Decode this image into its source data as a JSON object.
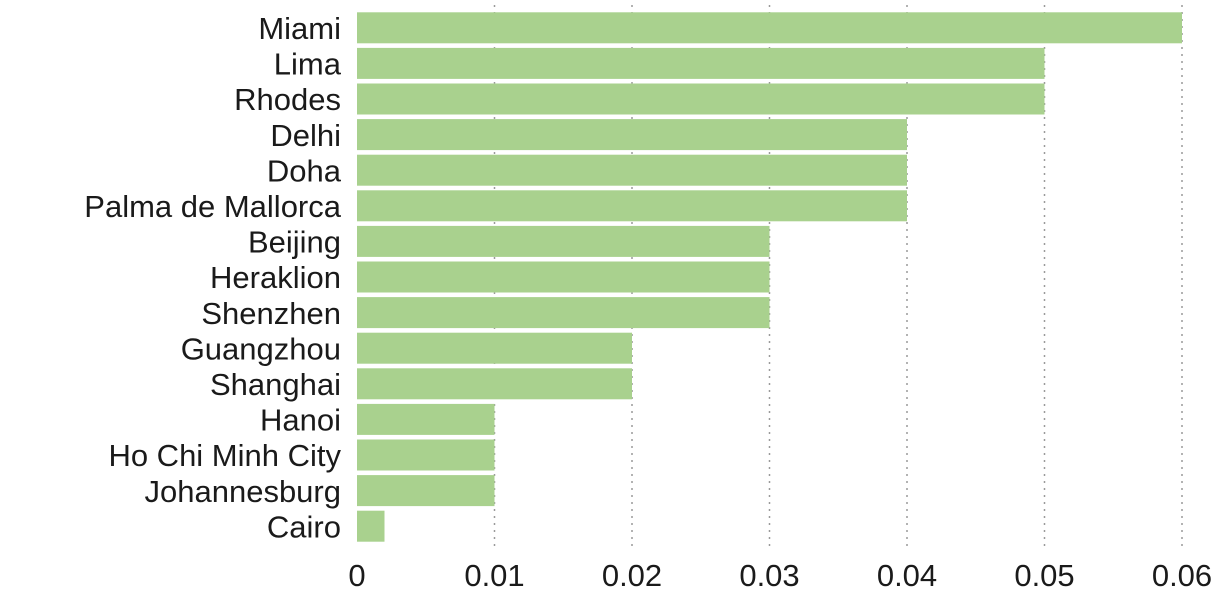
{
  "chart_data": {
    "type": "bar",
    "orientation": "horizontal",
    "categories": [
      "Miami",
      "Lima",
      "Rhodes",
      "Delhi",
      "Doha",
      "Palma de Mallorca",
      "Beijing",
      "Heraklion",
      "Shenzhen",
      "Guangzhou",
      "Shanghai",
      "Hanoi",
      "Ho Chi Minh City",
      "Johannesburg",
      "Cairo"
    ],
    "values": [
      0.06,
      0.05,
      0.05,
      0.04,
      0.04,
      0.04,
      0.03,
      0.03,
      0.03,
      0.02,
      0.02,
      0.01,
      0.01,
      0.01,
      0.002
    ],
    "xlim": [
      0,
      0.06
    ],
    "xticks": [
      0,
      0.01,
      0.02,
      0.03,
      0.04,
      0.05,
      0.06
    ],
    "xtick_labels": [
      "0",
      "0.01",
      "0.02",
      "0.03",
      "0.04",
      "0.05",
      "0.06"
    ],
    "grid": "vertical dotted",
    "bar_color": "#a9d18e",
    "title": "",
    "xlabel": "",
    "ylabel": ""
  }
}
